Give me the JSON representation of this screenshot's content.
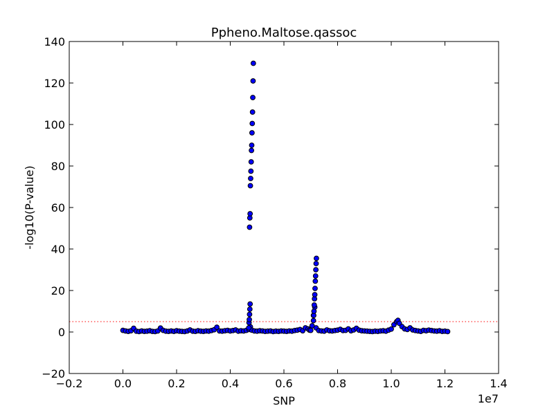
{
  "chart_data": {
    "type": "scatter",
    "title": "Ppheno.Maltose.qassoc",
    "xlabel": "SNP",
    "ylabel": "-log10(P-value)",
    "x_offset_label": "1e7",
    "xlim": [
      -0.2,
      1.4
    ],
    "ylim": [
      -20,
      140
    ],
    "x_ticks": [
      -0.2,
      0.0,
      0.2,
      0.4,
      0.6,
      0.8,
      1.0,
      1.2,
      1.4
    ],
    "x_tick_labels": [
      "−0.2",
      "0.0",
      "0.2",
      "0.4",
      "0.6",
      "0.8",
      "1.0",
      "1.2",
      "1.4"
    ],
    "y_ticks": [
      -20,
      0,
      20,
      40,
      60,
      80,
      100,
      120,
      140
    ],
    "y_tick_labels": [
      "−20",
      "0",
      "20",
      "40",
      "60",
      "80",
      "100",
      "120",
      "140"
    ],
    "threshold": 5,
    "threshold_color": "#ff0000",
    "marker_fill": "#0000ff",
    "marker_edge": "#000000",
    "grid": false,
    "legend": "none",
    "series": [
      {
        "x": [
          0.0,
          0.01,
          0.02,
          0.03,
          0.04,
          0.05,
          0.06,
          0.07,
          0.08,
          0.09,
          0.1,
          0.11,
          0.12,
          0.13,
          0.14,
          0.15,
          0.16,
          0.17,
          0.18,
          0.19,
          0.2,
          0.21,
          0.22,
          0.23,
          0.24,
          0.25,
          0.26,
          0.27,
          0.28,
          0.29,
          0.3,
          0.31,
          0.32,
          0.33,
          0.34,
          0.35,
          0.36,
          0.37,
          0.38,
          0.39,
          0.4,
          0.41,
          0.42,
          0.43,
          0.44,
          0.45,
          0.46,
          0.47,
          0.475,
          0.48,
          0.49,
          0.5,
          0.51,
          0.52,
          0.53,
          0.54,
          0.55,
          0.56,
          0.57,
          0.58,
          0.59,
          0.6,
          0.61,
          0.62,
          0.63,
          0.64,
          0.65,
          0.66,
          0.67,
          0.68,
          0.69,
          0.695,
          0.7,
          0.705,
          0.71,
          0.715,
          0.72,
          0.73,
          0.74,
          0.75,
          0.76,
          0.77,
          0.78,
          0.79,
          0.8,
          0.81,
          0.82,
          0.83,
          0.84,
          0.85,
          0.86,
          0.87,
          0.88,
          0.89,
          0.9,
          0.91,
          0.92,
          0.93,
          0.94,
          0.95,
          0.96,
          0.97,
          0.98,
          0.99,
          1.0,
          1.01,
          1.02,
          1.025,
          1.03,
          1.04,
          1.05,
          1.06,
          1.07,
          1.08,
          1.09,
          1.1,
          1.11,
          1.12,
          1.13,
          1.14,
          1.15,
          1.16,
          1.17,
          1.18,
          1.19,
          1.2,
          1.21
        ],
        "y": [
          0.8,
          0.5,
          0.3,
          0.6,
          1.8,
          0.4,
          0.2,
          0.5,
          0.3,
          0.4,
          0.6,
          0.3,
          0.2,
          0.5,
          1.9,
          0.8,
          0.4,
          0.3,
          0.5,
          0.3,
          0.6,
          0.4,
          0.3,
          0.2,
          0.5,
          1.0,
          0.4,
          0.3,
          0.6,
          0.4,
          0.3,
          0.5,
          0.4,
          0.7,
          1.1,
          2.3,
          0.5,
          0.4,
          0.6,
          0.8,
          0.5,
          0.7,
          1.0,
          0.4,
          0.6,
          0.5,
          0.8,
          1.2,
          2.5,
          0.9,
          0.5,
          0.4,
          0.6,
          0.5,
          0.3,
          0.4,
          0.5,
          0.2,
          0.4,
          0.3,
          0.5,
          0.4,
          0.3,
          0.5,
          0.4,
          0.7,
          0.9,
          1.2,
          0.6,
          2.0,
          1.5,
          0.9,
          0.8,
          3.0,
          8.0,
          12.0,
          2.0,
          0.7,
          0.5,
          0.4,
          1.0,
          0.6,
          0.5,
          0.7,
          0.9,
          1.3,
          0.7,
          0.8,
          1.5,
          0.6,
          1.0,
          1.8,
          0.9,
          0.6,
          0.5,
          0.4,
          0.3,
          0.2,
          0.4,
          0.3,
          0.5,
          0.6,
          0.4,
          0.9,
          1.4,
          3.5,
          5.0,
          5.6,
          4.2,
          2.6,
          1.5,
          1.2,
          2.0,
          1.0,
          0.7,
          0.5,
          0.3,
          0.8,
          0.6,
          0.9,
          0.7,
          0.5,
          0.4,
          0.6,
          0.3,
          0.4,
          0.2
        ]
      },
      {
        "x": [
          0.472,
          0.473,
          0.474,
          0.475,
          0.476,
          0.477,
          0.478,
          0.479,
          0.48,
          0.481,
          0.482,
          0.483,
          0.484,
          0.485,
          0.486
        ],
        "y": [
          50.5,
          55.0,
          57.0,
          70.5,
          74.0,
          77.5,
          82.0,
          87.5,
          90.0,
          96.0,
          100.5,
          106.0,
          113.0,
          121.0,
          129.5
        ]
      },
      {
        "x": [
          0.469,
          0.47,
          0.471,
          0.472,
          0.473,
          0.474
        ],
        "y": [
          2.0,
          4.5,
          6.0,
          8.5,
          11.0,
          13.5
        ]
      },
      {
        "x": [
          0.71,
          0.711,
          0.712,
          0.713,
          0.714,
          0.715,
          0.716,
          0.717,
          0.718,
          0.719,
          0.72,
          0.721
        ],
        "y": [
          5.5,
          8.0,
          10.0,
          13.0,
          16.0,
          18.0,
          21.0,
          24.5,
          27.0,
          30.0,
          33.0,
          35.5
        ]
      }
    ]
  }
}
